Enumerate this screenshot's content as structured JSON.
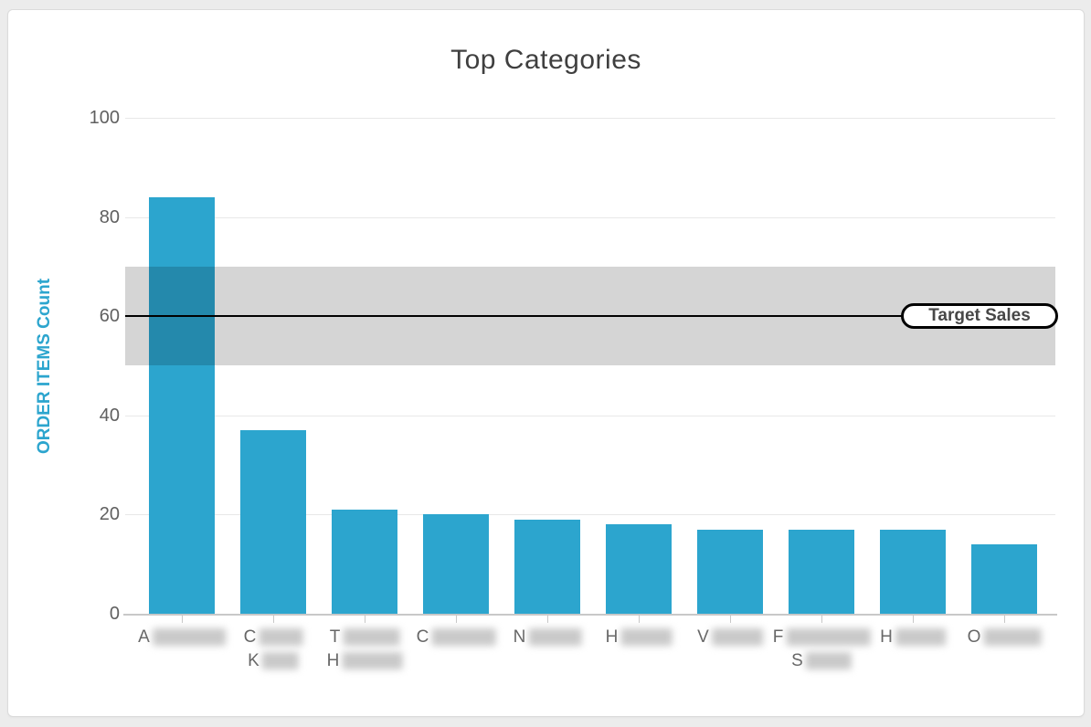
{
  "page": {
    "background_color": "#ececec"
  },
  "card": {
    "background_color": "#ffffff",
    "border_color": "#dbdbdb"
  },
  "header": {
    "title": "Top Categories",
    "menu_icon": "hamburger-icon"
  },
  "chart_data": {
    "type": "bar",
    "title": "Top Categories",
    "xlabel": "",
    "ylabel": "ORDER ITEMS Count",
    "ylabel_color": "#2CA5CE",
    "bar_color": "#2CA5CE",
    "grid": true,
    "gridline_color": "#e8e8e8",
    "ylim": [
      0,
      100
    ],
    "yticks": [
      0,
      20,
      40,
      60,
      80,
      100
    ],
    "values": [
      84,
      37,
      21,
      20,
      19,
      18,
      17,
      17,
      17,
      14
    ],
    "categories": [
      {
        "redacted": true,
        "lines": [
          {
            "visible": "A",
            "redacted_width": 80
          }
        ]
      },
      {
        "redacted": true,
        "lines": [
          {
            "visible": "C",
            "redacted_width": 48
          },
          {
            "visible": "K",
            "redacted_width": 40
          }
        ]
      },
      {
        "redacted": true,
        "lines": [
          {
            "visible": "T",
            "redacted_width": 62
          },
          {
            "visible": "H",
            "redacted_width": 66
          }
        ]
      },
      {
        "redacted": true,
        "lines": [
          {
            "visible": "C",
            "redacted_width": 70
          }
        ]
      },
      {
        "redacted": true,
        "lines": [
          {
            "visible": "N",
            "redacted_width": 58
          }
        ]
      },
      {
        "redacted": true,
        "lines": [
          {
            "visible": "H",
            "redacted_width": 56
          }
        ]
      },
      {
        "redacted": true,
        "lines": [
          {
            "visible": "V",
            "redacted_width": 56
          }
        ]
      },
      {
        "redacted": true,
        "lines": [
          {
            "visible": "F",
            "redacted_width": 92
          },
          {
            "visible": "S",
            "redacted_width": 50
          }
        ]
      },
      {
        "redacted": true,
        "lines": [
          {
            "visible": "H",
            "redacted_width": 55
          }
        ]
      },
      {
        "redacted": true,
        "lines": [
          {
            "visible": "O",
            "redacted_width": 63
          }
        ]
      }
    ],
    "plot_band": {
      "from": 50,
      "to": 70,
      "color": "rgba(0,0,0,0.165)"
    },
    "plot_line": {
      "value": 60,
      "color": "#000000",
      "label": "Target Sales"
    },
    "legend": "none"
  }
}
